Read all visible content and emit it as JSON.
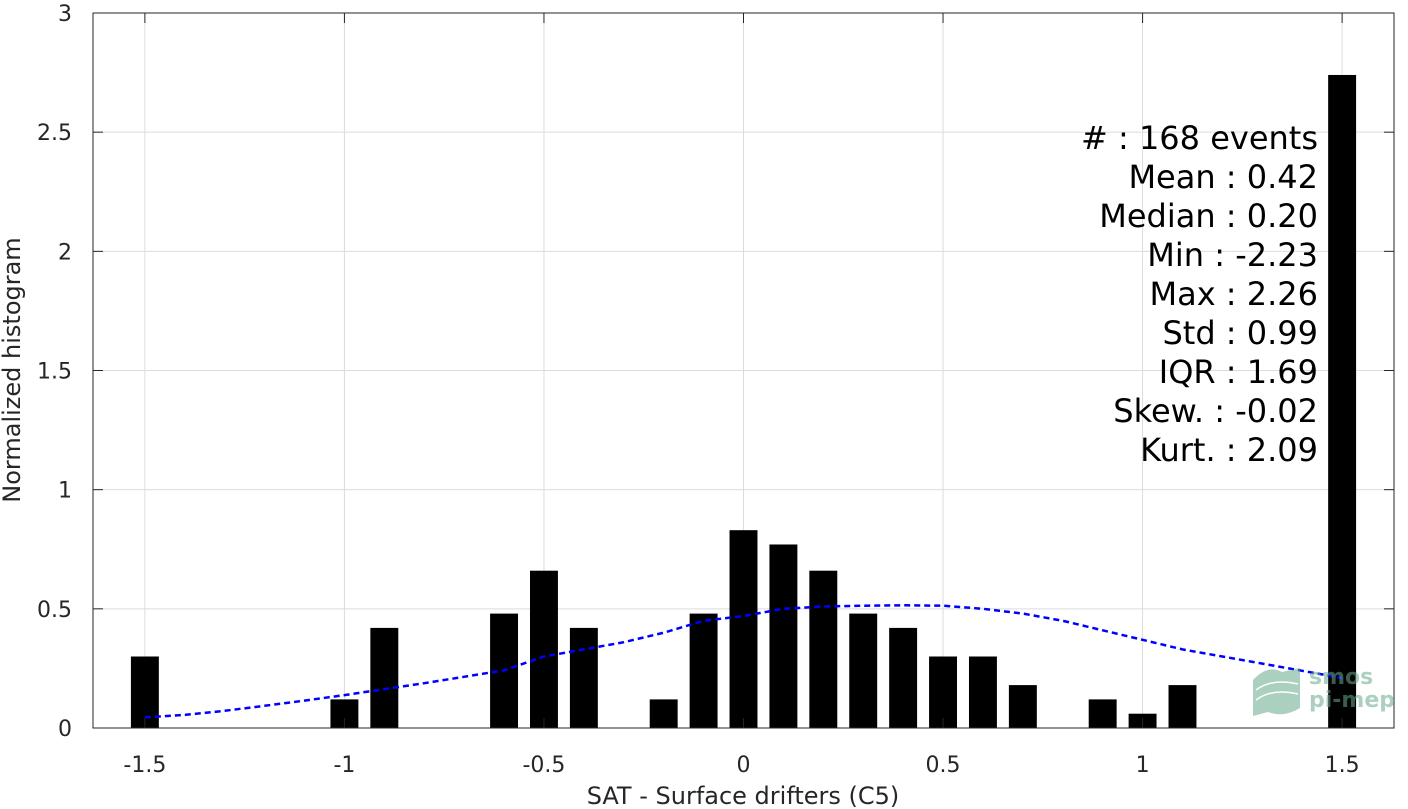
{
  "chart_data": {
    "type": "bar",
    "xlabel": "SAT - Surface drifters (C5)",
    "ylabel": "Normalized histogram",
    "xlim": [
      -1.63,
      1.63
    ],
    "ylim": [
      0,
      3
    ],
    "xticks": [
      -1.5,
      -1,
      -0.5,
      0,
      0.5,
      1,
      1.5
    ],
    "xtick_labels": [
      "-1.5",
      "-1",
      "-0.5",
      "0",
      "0.5",
      "1",
      "1.5"
    ],
    "yticks": [
      0,
      0.5,
      1,
      1.5,
      2,
      2.5,
      3
    ],
    "ytick_labels": [
      "0",
      "0.5",
      "1",
      "1.5",
      "2",
      "2.5",
      "3"
    ],
    "grid": true,
    "bar_width": 0.07,
    "bars": {
      "x": [
        -1.5,
        -1.0,
        -0.9,
        -0.6,
        -0.5,
        -0.4,
        -0.2,
        -0.1,
        0.0,
        0.1,
        0.2,
        0.3,
        0.4,
        0.5,
        0.6,
        0.7,
        0.9,
        1.0,
        1.1,
        1.5
      ],
      "y": [
        0.3,
        0.12,
        0.42,
        0.48,
        0.66,
        0.42,
        0.12,
        0.48,
        0.83,
        0.77,
        0.66,
        0.48,
        0.42,
        0.3,
        0.3,
        0.18,
        0.12,
        0.06,
        0.18,
        2.74
      ],
      "color": "#000000"
    },
    "fit": {
      "name": "Gaussian fit",
      "style": "dashed",
      "color": "#0000ff",
      "x": [
        -1.5,
        -1.4,
        -1.3,
        -1.2,
        -1.1,
        -1.0,
        -0.9,
        -0.8,
        -0.7,
        -0.6,
        -0.5,
        -0.4,
        -0.3,
        -0.2,
        -0.1,
        0.0,
        0.1,
        0.2,
        0.3,
        0.4,
        0.5,
        0.6,
        0.7,
        0.8,
        0.9,
        1.0,
        1.1,
        1.2,
        1.3,
        1.4,
        1.5
      ],
      "y": [
        0.045,
        0.055,
        0.072,
        0.093,
        0.115,
        0.138,
        0.163,
        0.188,
        0.215,
        0.242,
        0.3,
        0.33,
        0.36,
        0.4,
        0.45,
        0.47,
        0.5,
        0.51,
        0.513,
        0.515,
        0.513,
        0.5,
        0.48,
        0.45,
        0.41,
        0.37,
        0.33,
        0.3,
        0.27,
        0.24,
        0.21
      ]
    },
    "stats": [
      "#  : 168 events",
      "Mean : 0.42",
      "Median : 0.20",
      "Min : -2.23",
      "Max : 2.26",
      "Std : 0.99",
      "IQR : 1.69",
      "Skew. : -0.02",
      "Kurt. : 2.09"
    ]
  },
  "logo": {
    "line1": "smos",
    "line2": "pi-mep",
    "color": "#6aab8e"
  }
}
